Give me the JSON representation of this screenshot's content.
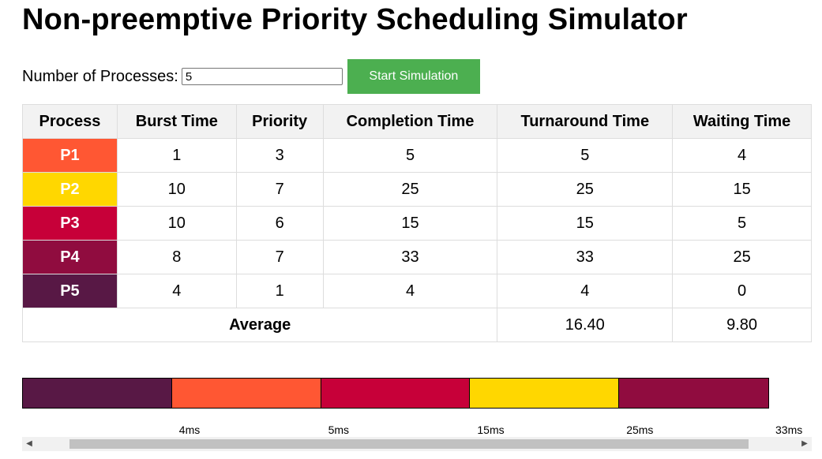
{
  "page": {
    "title": "Non-preemptive Priority Scheduling Simulator"
  },
  "controls": {
    "num_processes_label": "Number of Processes:",
    "num_processes_value": "5",
    "start_button_label": "Start Simulation"
  },
  "table": {
    "headers": [
      "Process",
      "Burst Time",
      "Priority",
      "Completion Time",
      "Turnaround Time",
      "Waiting Time"
    ],
    "rows": [
      {
        "process": "P1",
        "color": "#ff5733",
        "burst": "1",
        "priority": "3",
        "completion": "5",
        "turnaround": "5",
        "waiting": "4"
      },
      {
        "process": "P2",
        "color": "#ffd700",
        "burst": "10",
        "priority": "7",
        "completion": "25",
        "turnaround": "25",
        "waiting": "15"
      },
      {
        "process": "P3",
        "color": "#c70039",
        "burst": "10",
        "priority": "6",
        "completion": "15",
        "turnaround": "15",
        "waiting": "5"
      },
      {
        "process": "P4",
        "color": "#900c3f",
        "burst": "8",
        "priority": "7",
        "completion": "33",
        "turnaround": "33",
        "waiting": "25"
      },
      {
        "process": "P5",
        "color": "#581845",
        "burst": "4",
        "priority": "1",
        "completion": "4",
        "turnaround": "4",
        "waiting": "0"
      }
    ],
    "average": {
      "label": "Average",
      "turnaround": "16.40",
      "waiting": "9.80"
    }
  },
  "gantt": {
    "segments": [
      {
        "process": "P5",
        "color": "#581845",
        "start": 0,
        "end": 4
      },
      {
        "process": "P1",
        "color": "#ff5733",
        "start": 4,
        "end": 5
      },
      {
        "process": "P3",
        "color": "#c70039",
        "start": 5,
        "end": 15
      },
      {
        "process": "P2",
        "color": "#ffd700",
        "start": 15,
        "end": 25
      },
      {
        "process": "P4",
        "color": "#900c3f",
        "start": 25,
        "end": 33
      }
    ],
    "tick_labels": [
      "4ms",
      "5ms",
      "15ms",
      "25ms",
      "33ms"
    ]
  },
  "scrollbar": {
    "left_arrow_icon": "triangle-left-icon",
    "right_arrow_icon": "triangle-right-icon"
  }
}
